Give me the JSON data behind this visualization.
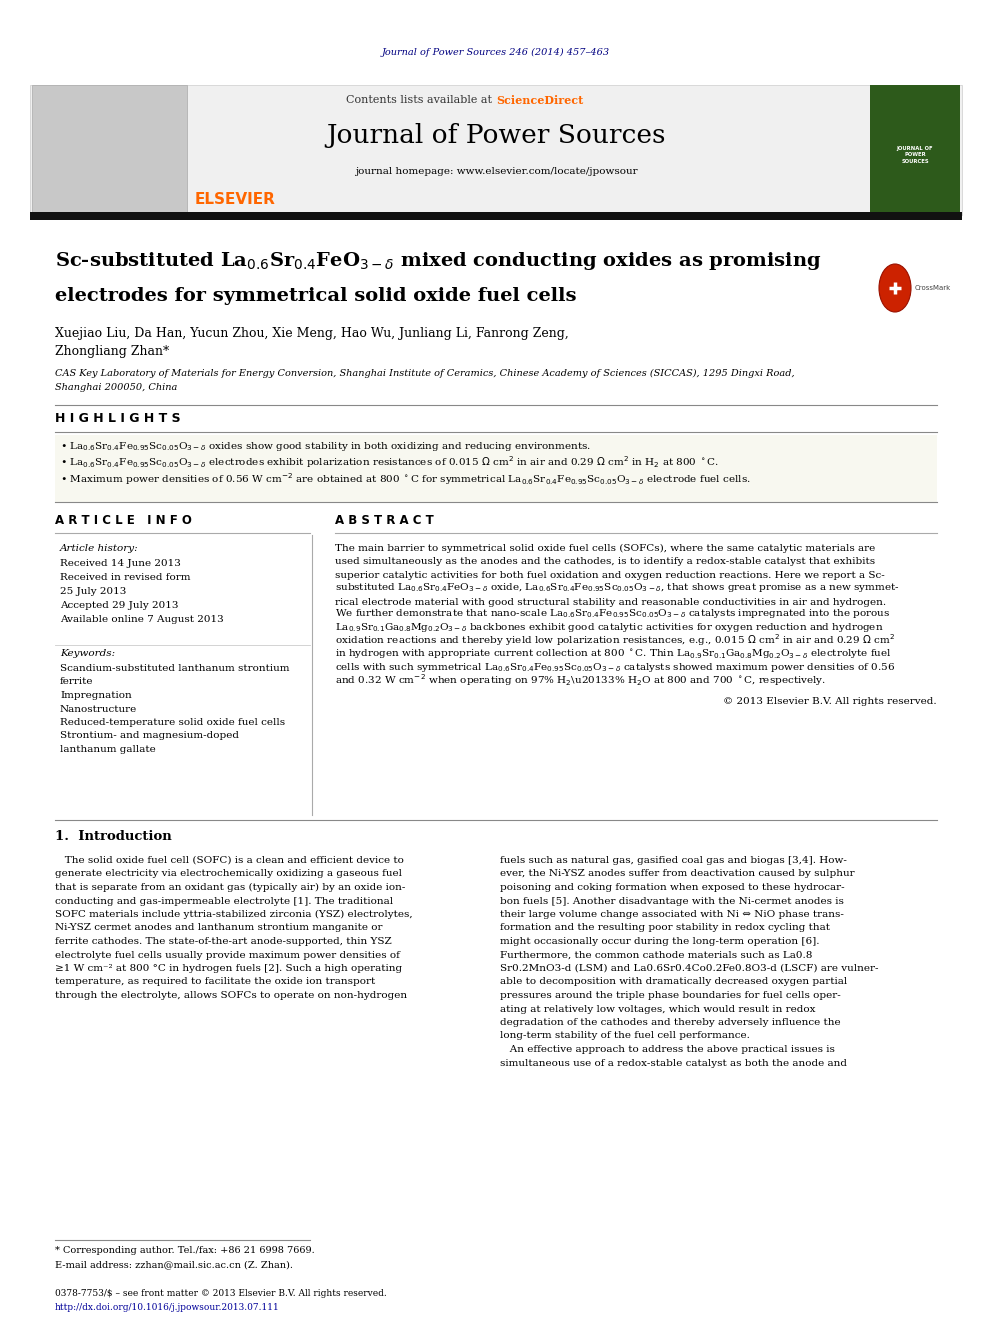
{
  "background_color": "#ffffff",
  "page_width": 9.92,
  "page_height": 13.23,
  "journal_citation": "Journal of Power Sources 246 (2014) 457–463",
  "journal_citation_color": "#000080",
  "header_text1": "Contents lists available at ",
  "header_sciencedirect": "ScienceDirect",
  "header_journal_name": "Journal of Power Sources",
  "header_homepage": "journal homepage: www.elsevier.com/locate/jpowsour",
  "elsevier_color": "#FF6600",
  "authors": "Xuejiao Liu, Da Han, Yucun Zhou, Xie Meng, Hao Wu, Junliang Li, Fanrong Zeng,",
  "authors2": "Zhongliang Zhan*",
  "affiliation": "CAS Key Laboratory of Materials for Energy Conversion, Shanghai Institute of Ceramics, Chinese Academy of Sciences (SICCAS), 1295 Dingxi Road,",
  "affiliation2": "Shanghai 200050, China",
  "highlights_title": "H I G H L I G H T S",
  "article_info_title": "A R T I C L E   I N F O",
  "abstract_title": "A B S T R A C T",
  "received": "Received 14 June 2013",
  "received_revised": "Received in revised form",
  "date_revised": "25 July 2013",
  "accepted": "Accepted 29 July 2013",
  "available": "Available online 7 August 2013",
  "keywords_title": "Keywords:",
  "kw1": "Scandium-substituted lanthanum strontium",
  "kw2": "ferrite",
  "kw3": "Impregnation",
  "kw4": "Nanostructure",
  "kw5": "Reduced-temperature solid oxide fuel cells",
  "kw6": "Strontium- and magnesium-doped",
  "kw7": "lanthanum gallate",
  "abstract_text": "The main barrier to symmetrical solid oxide fuel cells (SOFCs), where the same catalytic materials are used simultaneously as the anodes and the cathodes, is to identify a redox-stable catalyst that exhibits superior catalytic activities for both fuel oxidation and oxygen reduction reactions. Here we report a Sc-substituted La0.6Sr0.4FeO3-d oxide, La0.6Sr0.4Fe0.95Sc0.05O3-d, that shows great promise as a new symmetrical electrode material with good structural stability and reasonable conductivities in air and hydrogen. We further demonstrate that nano-scale La0.6Sr0.4Fe0.95Sc0.05O3-d catalysts impregnated into the porous La0.9Sr0.1Ga0.8Mg0.2O3-d backbones exhibit good catalytic activities for oxygen reduction and hydrogen oxidation reactions and thereby yield low polarization resistances, e.g., 0.015 Ω cm2 in air and 0.29 Ω cm2 in hydrogen with appropriate current collection at 800 °C. Thin La0.9Sr0.1Ga0.8Mg0.2O3-d electrolyte fuel cells with such symmetrical La0.6Sr0.4Fe0.95Sc0.05O3-d catalysts showed maximum power densities of 0.56 and 0.32 W cm-2 when operating on 97% H2-3% H2O at 800 and 700 °C, respectively.",
  "copyright": "© 2013 Elsevier B.V. All rights reserved.",
  "intro_title": "1.  Introduction",
  "intro_col1_lines": [
    "   The solid oxide fuel cell (SOFC) is a clean and efficient device to",
    "generate electricity via electrochemically oxidizing a gaseous fuel",
    "that is separate from an oxidant gas (typically air) by an oxide ion-",
    "conducting and gas-impermeable electrolyte [1]. The traditional",
    "SOFC materials include yttria-stabilized zirconia (YSZ) electrolytes,",
    "Ni-YSZ cermet anodes and lanthanum strontium manganite or",
    "ferrite cathodes. The state-of-the-art anode-supported, thin YSZ",
    "electrolyte fuel cells usually provide maximum power densities of",
    "≥1 W cm⁻² at 800 °C in hydrogen fuels [2]. Such a high operating",
    "temperature, as required to facilitate the oxide ion transport",
    "through the electrolyte, allows SOFCs to operate on non-hydrogen"
  ],
  "intro_col2_lines": [
    "fuels such as natural gas, gasified coal gas and biogas [3,4]. How-",
    "ever, the Ni-YSZ anodes suffer from deactivation caused by sulphur",
    "poisoning and coking formation when exposed to these hydrocar-",
    "bon fuels [5]. Another disadvantage with the Ni-cermet anodes is",
    "their large volume change associated with Ni ⇔ NiO phase trans-",
    "formation and the resulting poor stability in redox cycling that",
    "might occasionally occur during the long-term operation [6].",
    "Furthermore, the common cathode materials such as La0.8",
    "Sr0.2MnO3-d (LSM) and La0.6Sr0.4Co0.2Fe0.8O3-d (LSCF) are vulner-",
    "able to decomposition with dramatically decreased oxygen partial",
    "pressures around the triple phase boundaries for fuel cells oper-",
    "ating at relatively low voltages, which would result in redox",
    "degradation of the cathodes and thereby adversely influence the",
    "long-term stability of the fuel cell performance.",
    "   An effective approach to address the above practical issues is",
    "simultaneous use of a redox-stable catalyst as both the anode and"
  ],
  "footnote_star": "* Corresponding author. Tel./fax: +86 21 6998 7669.",
  "footnote_email": "E-mail address: zzhan@mail.sic.ac.cn (Z. Zhan).",
  "footer_issn": "0378-7753/$ – see front matter © 2013 Elsevier B.V. All rights reserved.",
  "footer_doi": "http://dx.doi.org/10.1016/j.jpowsour.2013.07.111"
}
